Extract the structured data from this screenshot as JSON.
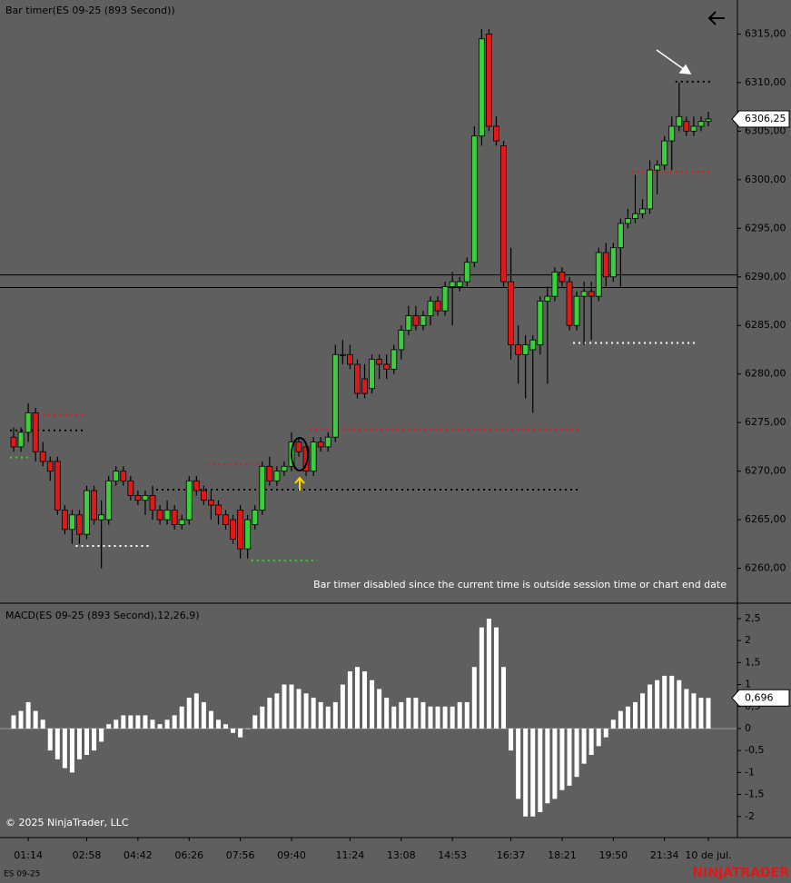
{
  "chart_data": [
    {
      "type": "candlestick",
      "title": "Bar timer(ES 09-25 (893 Second))",
      "annotation": "Bar timer disabled since the current time is outside session time or chart end date",
      "categories": [
        null,
        null,
        "01:14",
        null,
        null,
        null,
        null,
        null,
        null,
        null,
        "02:58",
        null,
        null,
        null,
        null,
        null,
        null,
        "04:42",
        null,
        null,
        null,
        null,
        null,
        null,
        "06:26",
        null,
        null,
        null,
        null,
        null,
        null,
        "07:56",
        null,
        null,
        null,
        null,
        null,
        null,
        "09:40",
        null,
        null,
        null,
        null,
        null,
        null,
        null,
        "11:24",
        null,
        null,
        null,
        null,
        null,
        null,
        "13:08",
        null,
        null,
        null,
        null,
        null,
        null,
        "14:53",
        null,
        null,
        null,
        null,
        null,
        null,
        null,
        "16:37",
        null,
        null,
        null,
        null,
        null,
        null,
        "18:21",
        null,
        null,
        null,
        null,
        null,
        null,
        "19:50",
        null,
        null,
        null,
        null,
        null,
        null,
        "21:34",
        null,
        null,
        null,
        null,
        null,
        "10 de jul."
      ],
      "open": [
        6273.5,
        6272.5,
        6274,
        6276,
        6272,
        6271,
        6271,
        6266,
        6264,
        6265.5,
        6263.5,
        6268,
        6265,
        6265,
        6269,
        6270,
        6269,
        6267.5,
        6267,
        6267.5,
        6266,
        6265,
        6266,
        6264.5,
        6265,
        6269,
        6268,
        6267,
        6266.5,
        6265.5,
        6265,
        6266,
        6262,
        6264.5,
        6266,
        6270.5,
        6269,
        6270,
        6270.5,
        6273,
        6272.5,
        6270,
        6273,
        6272.5,
        6273.5,
        6282,
        6282,
        6281,
        6279.5,
        6278.5,
        6281.5,
        6281,
        6280.5,
        6282.5,
        6284.5,
        6286,
        6285,
        6286,
        6287.5,
        6286.5,
        6289,
        6289,
        6289.5,
        6291.5,
        6304.5,
        6315,
        6305.5,
        6303.5,
        6289.5,
        6283,
        6282,
        6282.5,
        6283,
        6287.5,
        6288,
        6290.5,
        6289.5,
        6285,
        6288,
        6288.5,
        6288,
        6292.5,
        6290,
        6293,
        6295.5,
        6296,
        6296.5,
        6297,
        6301,
        6301.5,
        6304,
        6305.5,
        6306,
        6305,
        6305.5,
        6306
      ],
      "high": [
        6274.5,
        6274.5,
        6277,
        6276.5,
        6273,
        6271.5,
        6271.5,
        6266.5,
        6266,
        6266,
        6268.5,
        6268.5,
        6267,
        6269.5,
        6270.5,
        6270.5,
        6269.5,
        6268,
        6268,
        6268.5,
        6266.5,
        6267,
        6266.5,
        6265.5,
        6269.5,
        6269.5,
        6268.5,
        6268,
        6267,
        6266,
        6265.5,
        6266.5,
        6265.5,
        6266.5,
        6271,
        6271.5,
        6270.5,
        6271,
        6274,
        6273.5,
        6273,
        6273.5,
        6273.5,
        6274,
        6283,
        6283.5,
        6283,
        6281.5,
        6281,
        6282,
        6282,
        6282,
        6283,
        6285,
        6287,
        6287,
        6286.5,
        6288,
        6288,
        6289.5,
        6290.5,
        6290,
        6292,
        6305.5,
        6315.5,
        6315.5,
        6306.5,
        6304,
        6293,
        6285,
        6284,
        6284,
        6288,
        6289,
        6291,
        6291,
        6290,
        6288.5,
        6289.5,
        6289.5,
        6293,
        6293.5,
        6293.5,
        6296,
        6297,
        6300.5,
        6298,
        6302,
        6302,
        6304.5,
        6306.5,
        6310,
        6306.5,
        6306.5,
        6306.5,
        6307
      ],
      "low": [
        6272,
        6272,
        6273,
        6271,
        6270.5,
        6269,
        6265.5,
        6263.5,
        6262.5,
        6262.5,
        6263,
        6264.5,
        6260,
        6264.5,
        6268.5,
        6268.5,
        6267,
        6266.5,
        6265.5,
        6265,
        6264.5,
        6264.5,
        6264,
        6264,
        6264.5,
        6267.5,
        6266.5,
        6265,
        6264.5,
        6264,
        6262.5,
        6261,
        6261,
        6264,
        6265.5,
        6268.5,
        6268.5,
        6269.5,
        6270,
        6271.5,
        6269.5,
        6269.5,
        6272,
        6272,
        6273,
        6281,
        6280.5,
        6277.5,
        6277.5,
        6278,
        6279.5,
        6279.5,
        6280,
        6281.5,
        6284,
        6284.5,
        6284.5,
        6285,
        6286,
        6286,
        6285,
        6288.5,
        6289,
        6291,
        6303.5,
        6305,
        6303.5,
        6289,
        6281.5,
        6279,
        6277.5,
        6276,
        6282,
        6279,
        6287.5,
        6289,
        6284.5,
        6284.5,
        6283,
        6283.5,
        6287.5,
        6289,
        6289.5,
        6289,
        6295,
        6295.5,
        6296,
        6296.5,
        6298.5,
        6301,
        6301,
        6305,
        6304.5,
        6304.5,
        6305,
        6305.5
      ],
      "close": [
        6272.5,
        6274,
        6276,
        6272,
        6271,
        6270,
        6266,
        6264,
        6265.5,
        6263.5,
        6268,
        6265,
        6265.5,
        6269,
        6270,
        6269,
        6267.5,
        6267,
        6267.5,
        6266,
        6265,
        6266,
        6264.5,
        6265,
        6269,
        6268,
        6267,
        6266.5,
        6265.5,
        6264.5,
        6263,
        6262,
        6265,
        6266,
        6270.5,
        6269,
        6270,
        6270.5,
        6273,
        6272,
        6270,
        6273,
        6272.5,
        6273.5,
        6282,
        6282,
        6281,
        6278,
        6278,
        6281.5,
        6281,
        6280.5,
        6282.5,
        6284.5,
        6286,
        6285,
        6286,
        6287.5,
        6286.5,
        6289,
        6289.5,
        6289.5,
        6291.5,
        6304.5,
        6314.5,
        6305.5,
        6304,
        6289.5,
        6283,
        6282,
        6283,
        6283.5,
        6287.5,
        6288,
        6290.5,
        6289.5,
        6285,
        6288,
        6288.5,
        6288,
        6292.5,
        6290,
        6293,
        6295.5,
        6296,
        6296.5,
        6297,
        6301,
        6301.5,
        6304,
        6305.5,
        6306.5,
        6305,
        6305.5,
        6306,
        6306.25
      ],
      "up_color": "#3ccf3c",
      "down_color": "#e01818",
      "hlines": [
        6290.2,
        6288.9
      ],
      "levels": [
        {
          "value": 6275.8,
          "start": 3,
          "end": 9,
          "color": "#e01818"
        },
        {
          "value": 6274.2,
          "start": 0,
          "end": 9,
          "color": "#000000"
        },
        {
          "value": 6271.4,
          "start": 0,
          "end": 2,
          "color": "#3ccf3c"
        },
        {
          "value": 6262.3,
          "start": 9,
          "end": 18,
          "color": "#ffffff"
        },
        {
          "value": 6270.7,
          "start": 27,
          "end": 33,
          "color": "#e01818"
        },
        {
          "value": 6268.1,
          "start": 20,
          "end": 77,
          "color": "#000000"
        },
        {
          "value": 6274.3,
          "start": 41,
          "end": 77,
          "color": "#e01818"
        },
        {
          "value": 6260.8,
          "start": 33,
          "end": 41,
          "color": "#3ccf3c"
        },
        {
          "value": 6283.2,
          "start": 77,
          "end": 93,
          "color": "#ffffff"
        },
        {
          "value": 6300.8,
          "start": 85,
          "end": 95,
          "color": "#e01818"
        },
        {
          "value": 6310.1,
          "start": 91,
          "end": 95,
          "color": "#000000"
        }
      ],
      "current_price": 6306.25,
      "current_price_label": "6306,25",
      "ylim": [
        6256.5,
        6318.5
      ],
      "yticks": [
        {
          "value": 6260,
          "label": "6260,00"
        },
        {
          "value": 6265,
          "label": "6265,00"
        },
        {
          "value": 6270,
          "label": "6270,00"
        },
        {
          "value": 6275,
          "label": "6275,00"
        },
        {
          "value": 6280,
          "label": "6280,00"
        },
        {
          "value": 6285,
          "label": "6285,00"
        },
        {
          "value": 6290,
          "label": "6290,00"
        },
        {
          "value": 6295,
          "label": "6295,00"
        },
        {
          "value": 6300,
          "label": "6300,00"
        },
        {
          "value": 6305,
          "label": "6305,00"
        },
        {
          "value": 6310,
          "label": "6310,00"
        },
        {
          "value": 6315,
          "label": "6315,00"
        }
      ]
    },
    {
      "type": "bar",
      "title": "MACD(ES 09-25 (893 Second),12,26,9)",
      "color": "#ffffff",
      "values": [
        0.3,
        0.4,
        0.6,
        0.4,
        0.2,
        -0.5,
        -0.7,
        -0.9,
        -1.0,
        -0.7,
        -0.6,
        -0.5,
        -0.3,
        0.1,
        0.2,
        0.3,
        0.3,
        0.3,
        0.3,
        0.2,
        0.1,
        0.2,
        0.3,
        0.5,
        0.7,
        0.8,
        0.6,
        0.4,
        0.2,
        0.1,
        -0.1,
        -0.2,
        0.0,
        0.3,
        0.5,
        0.7,
        0.8,
        1.0,
        1.0,
        0.9,
        0.8,
        0.7,
        0.6,
        0.5,
        0.6,
        1.0,
        1.3,
        1.4,
        1.3,
        1.1,
        0.9,
        0.7,
        0.5,
        0.6,
        0.7,
        0.7,
        0.6,
        0.5,
        0.5,
        0.5,
        0.5,
        0.6,
        0.6,
        1.4,
        2.3,
        2.5,
        2.3,
        1.4,
        -0.5,
        -1.6,
        -2.0,
        -2.0,
        -1.9,
        -1.7,
        -1.6,
        -1.4,
        -1.3,
        -1.1,
        -0.8,
        -0.6,
        -0.4,
        -0.2,
        0.2,
        0.4,
        0.5,
        0.6,
        0.8,
        1.0,
        1.1,
        1.2,
        1.2,
        1.1,
        0.9,
        0.8,
        0.7,
        0.696
      ],
      "current_value": 0.696,
      "current_value_label": "0,696",
      "ylim": [
        -2.48,
        2.83
      ],
      "yticks": [
        {
          "value": -2,
          "label": "-2"
        },
        {
          "value": -1.5,
          "label": "-1,5"
        },
        {
          "value": -1,
          "label": "-1"
        },
        {
          "value": -0.5,
          "label": "-0,5"
        },
        0,
        {
          "value": 0.5,
          "label": "0,5"
        },
        1,
        {
          "value": 1.5,
          "label": "1,5"
        },
        2,
        {
          "value": 2.5,
          "label": "2,5"
        }
      ]
    }
  ],
  "footer": {
    "copyright": "© 2025 NinjaTrader, LLC",
    "instrument": "ES 09-25",
    "brand": "NINJATRADER"
  }
}
